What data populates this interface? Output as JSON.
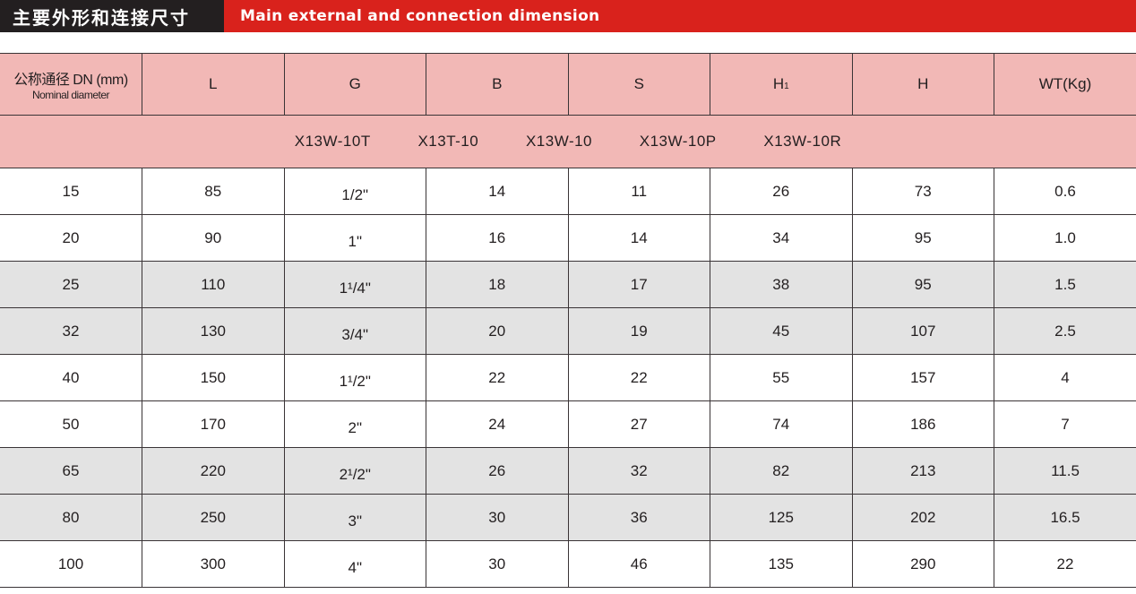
{
  "title": {
    "cn": "主要外形和连接尺寸",
    "en": "Main external and connection dimension"
  },
  "colors": {
    "title_dark": "#231f20",
    "title_red": "#d9221c",
    "header_pink": "#f2b8b6",
    "row_gray": "#e3e3e3"
  },
  "table": {
    "dn_header_cn": "公称通径 DN (mm)",
    "dn_header_en": "Nominal diameter",
    "columns": [
      "L",
      "G",
      "B",
      "S",
      "H",
      "H",
      "WT(Kg)"
    ],
    "h1_sub": "1",
    "models": [
      "X13W-10T",
      "X13T-10",
      "X13W-10",
      "X13W-10P",
      "X13W-10R"
    ],
    "rows": [
      {
        "dn": "15",
        "L": "85",
        "G": "1/2\"",
        "B": "14",
        "S": "11",
        "H1": "26",
        "H": "73",
        "WT": "0.6"
      },
      {
        "dn": "20",
        "L": "90",
        "G": "1\"",
        "B": "16",
        "S": "14",
        "H1": "34",
        "H": "95",
        "WT": "1.0"
      },
      {
        "dn": "25",
        "L": "110",
        "G": "1¹/4\"",
        "B": "18",
        "S": "17",
        "H1": "38",
        "H": "95",
        "WT": "1.5"
      },
      {
        "dn": "32",
        "L": "130",
        "G": "3/4\"",
        "B": "20",
        "S": "19",
        "H1": "45",
        "H": "107",
        "WT": "2.5"
      },
      {
        "dn": "40",
        "L": "150",
        "G": "1¹/2\"",
        "B": "22",
        "S": "22",
        "H1": "55",
        "H": "157",
        "WT": "4"
      },
      {
        "dn": "50",
        "L": "170",
        "G": "2\"",
        "B": "24",
        "S": "27",
        "H1": "74",
        "H": "186",
        "WT": "7"
      },
      {
        "dn": "65",
        "L": "220",
        "G": "2¹/2\"",
        "B": "26",
        "S": "32",
        "H1": "82",
        "H": "213",
        "WT": "11.5"
      },
      {
        "dn": "80",
        "L": "250",
        "G": "3\"",
        "B": "30",
        "S": "36",
        "H1": "125",
        "H": "202",
        "WT": "16.5"
      },
      {
        "dn": "100",
        "L": "300",
        "G": "4\"",
        "B": "30",
        "S": "46",
        "H1": "135",
        "H": "290",
        "WT": "22"
      }
    ]
  }
}
